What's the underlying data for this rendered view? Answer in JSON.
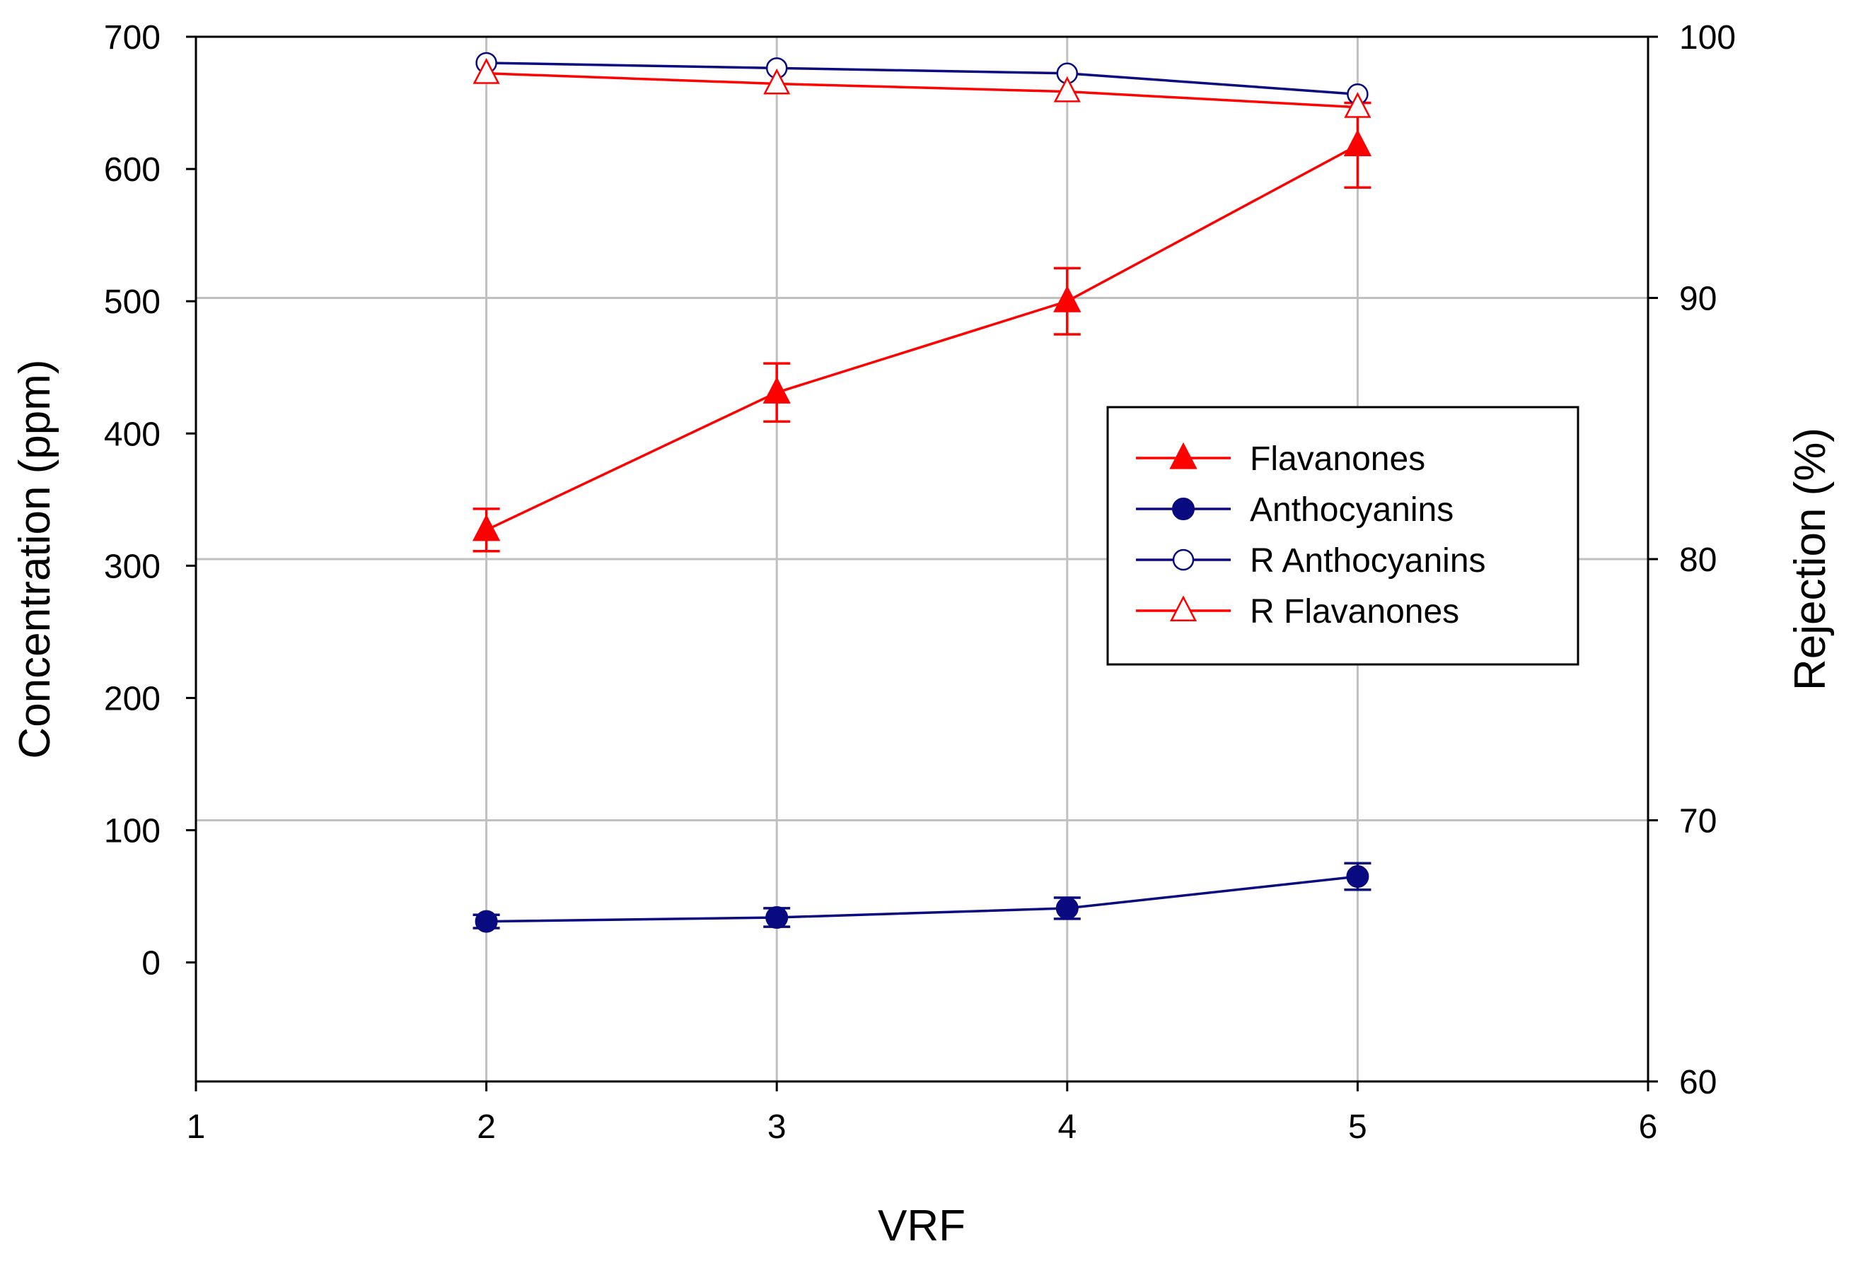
{
  "chart_data": {
    "type": "line",
    "x": [
      2,
      3,
      4,
      5
    ],
    "xlabel": "VRF",
    "ylabel": "Concentration (ppm)",
    "y2label": "Rejection (%)",
    "xlim": [
      1,
      6
    ],
    "ylim": [
      -90,
      700
    ],
    "y2lim": [
      60,
      100
    ],
    "xticks": [
      "1",
      "2",
      "3",
      "4",
      "5",
      "6"
    ],
    "xtick_values": [
      1,
      2,
      3,
      4,
      5,
      6
    ],
    "yticks": [
      "0",
      "100",
      "200",
      "300",
      "400",
      "500",
      "600",
      "700"
    ],
    "ytick_values": [
      0,
      100,
      200,
      300,
      400,
      500,
      600,
      700
    ],
    "y2ticks": [
      "60",
      "70",
      "80",
      "90",
      "100"
    ],
    "y2tick_values": [
      60,
      70,
      80,
      90,
      100
    ],
    "grid": true,
    "legend_position": "right-middle",
    "series": [
      {
        "name": "Flavanones",
        "axis": "left",
        "marker": "triangle-filled",
        "color": "#ff0000",
        "values": [
          327,
          431,
          500,
          618
        ],
        "errors": [
          16,
          22,
          25,
          32
        ]
      },
      {
        "name": "Anthocyanins",
        "axis": "left",
        "marker": "circle-filled",
        "color": "#0a0a80",
        "values": [
          31,
          34,
          41,
          65
        ],
        "errors": [
          5,
          7,
          8,
          10
        ]
      },
      {
        "name": "R Anthocyanins",
        "axis": "right",
        "marker": "circle-open",
        "color": "#0a0a80",
        "values": [
          99.0,
          98.8,
          98.6,
          97.8
        ]
      },
      {
        "name": "R Flavanones",
        "axis": "right",
        "marker": "triangle-open",
        "color": "#ff0000",
        "values": [
          98.6,
          98.2,
          97.9,
          97.3
        ]
      }
    ]
  }
}
